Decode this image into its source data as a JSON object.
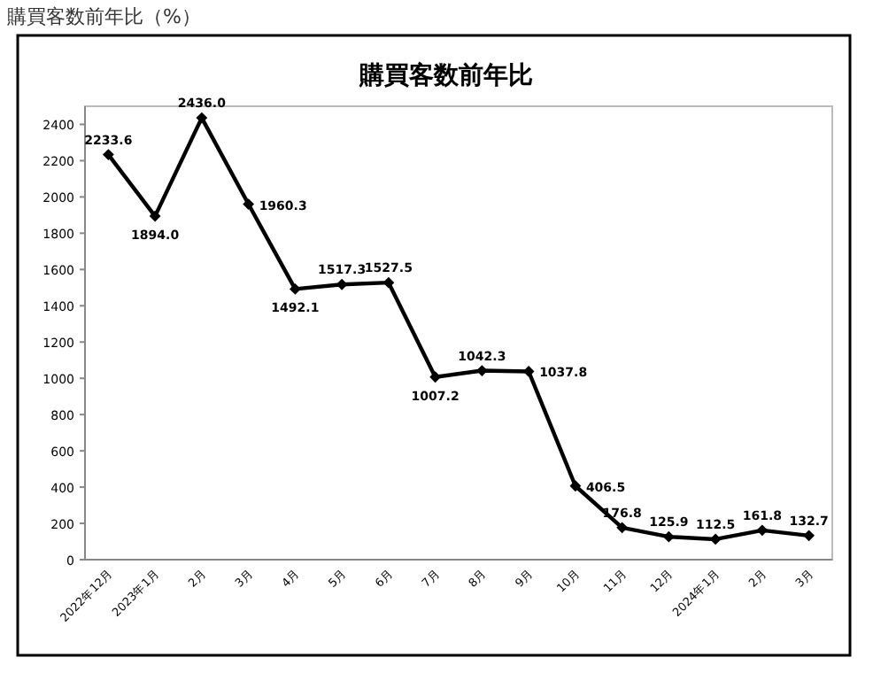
{
  "chart_data": {
    "type": "line",
    "title": "購買客数前年比",
    "subtitle": "購買客数前年比（%）",
    "categories": [
      "2022年12月",
      "2023年1月",
      "2月",
      "3月",
      "4月",
      "5月",
      "6月",
      "7月",
      "8月",
      "9月",
      "10月",
      "11月",
      "12月",
      "2024年1月",
      "2月",
      "3月"
    ],
    "series": [
      {
        "color": "#000000",
        "values": [
          2233.6,
          1894.0,
          2436.0,
          1960.3,
          1492.1,
          1517.3,
          1527.5,
          1007.2,
          1042.3,
          1037.8,
          406.5,
          176.8,
          125.9,
          112.5,
          161.8,
          132.7
        ],
        "value_labels": [
          "2233.6",
          "1894.0",
          "2436.0",
          "1960.3",
          "1492.1",
          "1517.3",
          "1527.5",
          "1007.2",
          "1042.3",
          "1037.8",
          "406.5",
          "176.8",
          "125.9",
          "112.5",
          "161.8",
          "132.7"
        ]
      }
    ],
    "ylim": [
      0,
      2500
    ],
    "yticks": [
      0,
      200,
      400,
      600,
      800,
      1000,
      1200,
      1400,
      1600,
      1800,
      2000,
      2200,
      2400
    ],
    "grid": false,
    "marker": "diamond",
    "line_style": "solid"
  }
}
